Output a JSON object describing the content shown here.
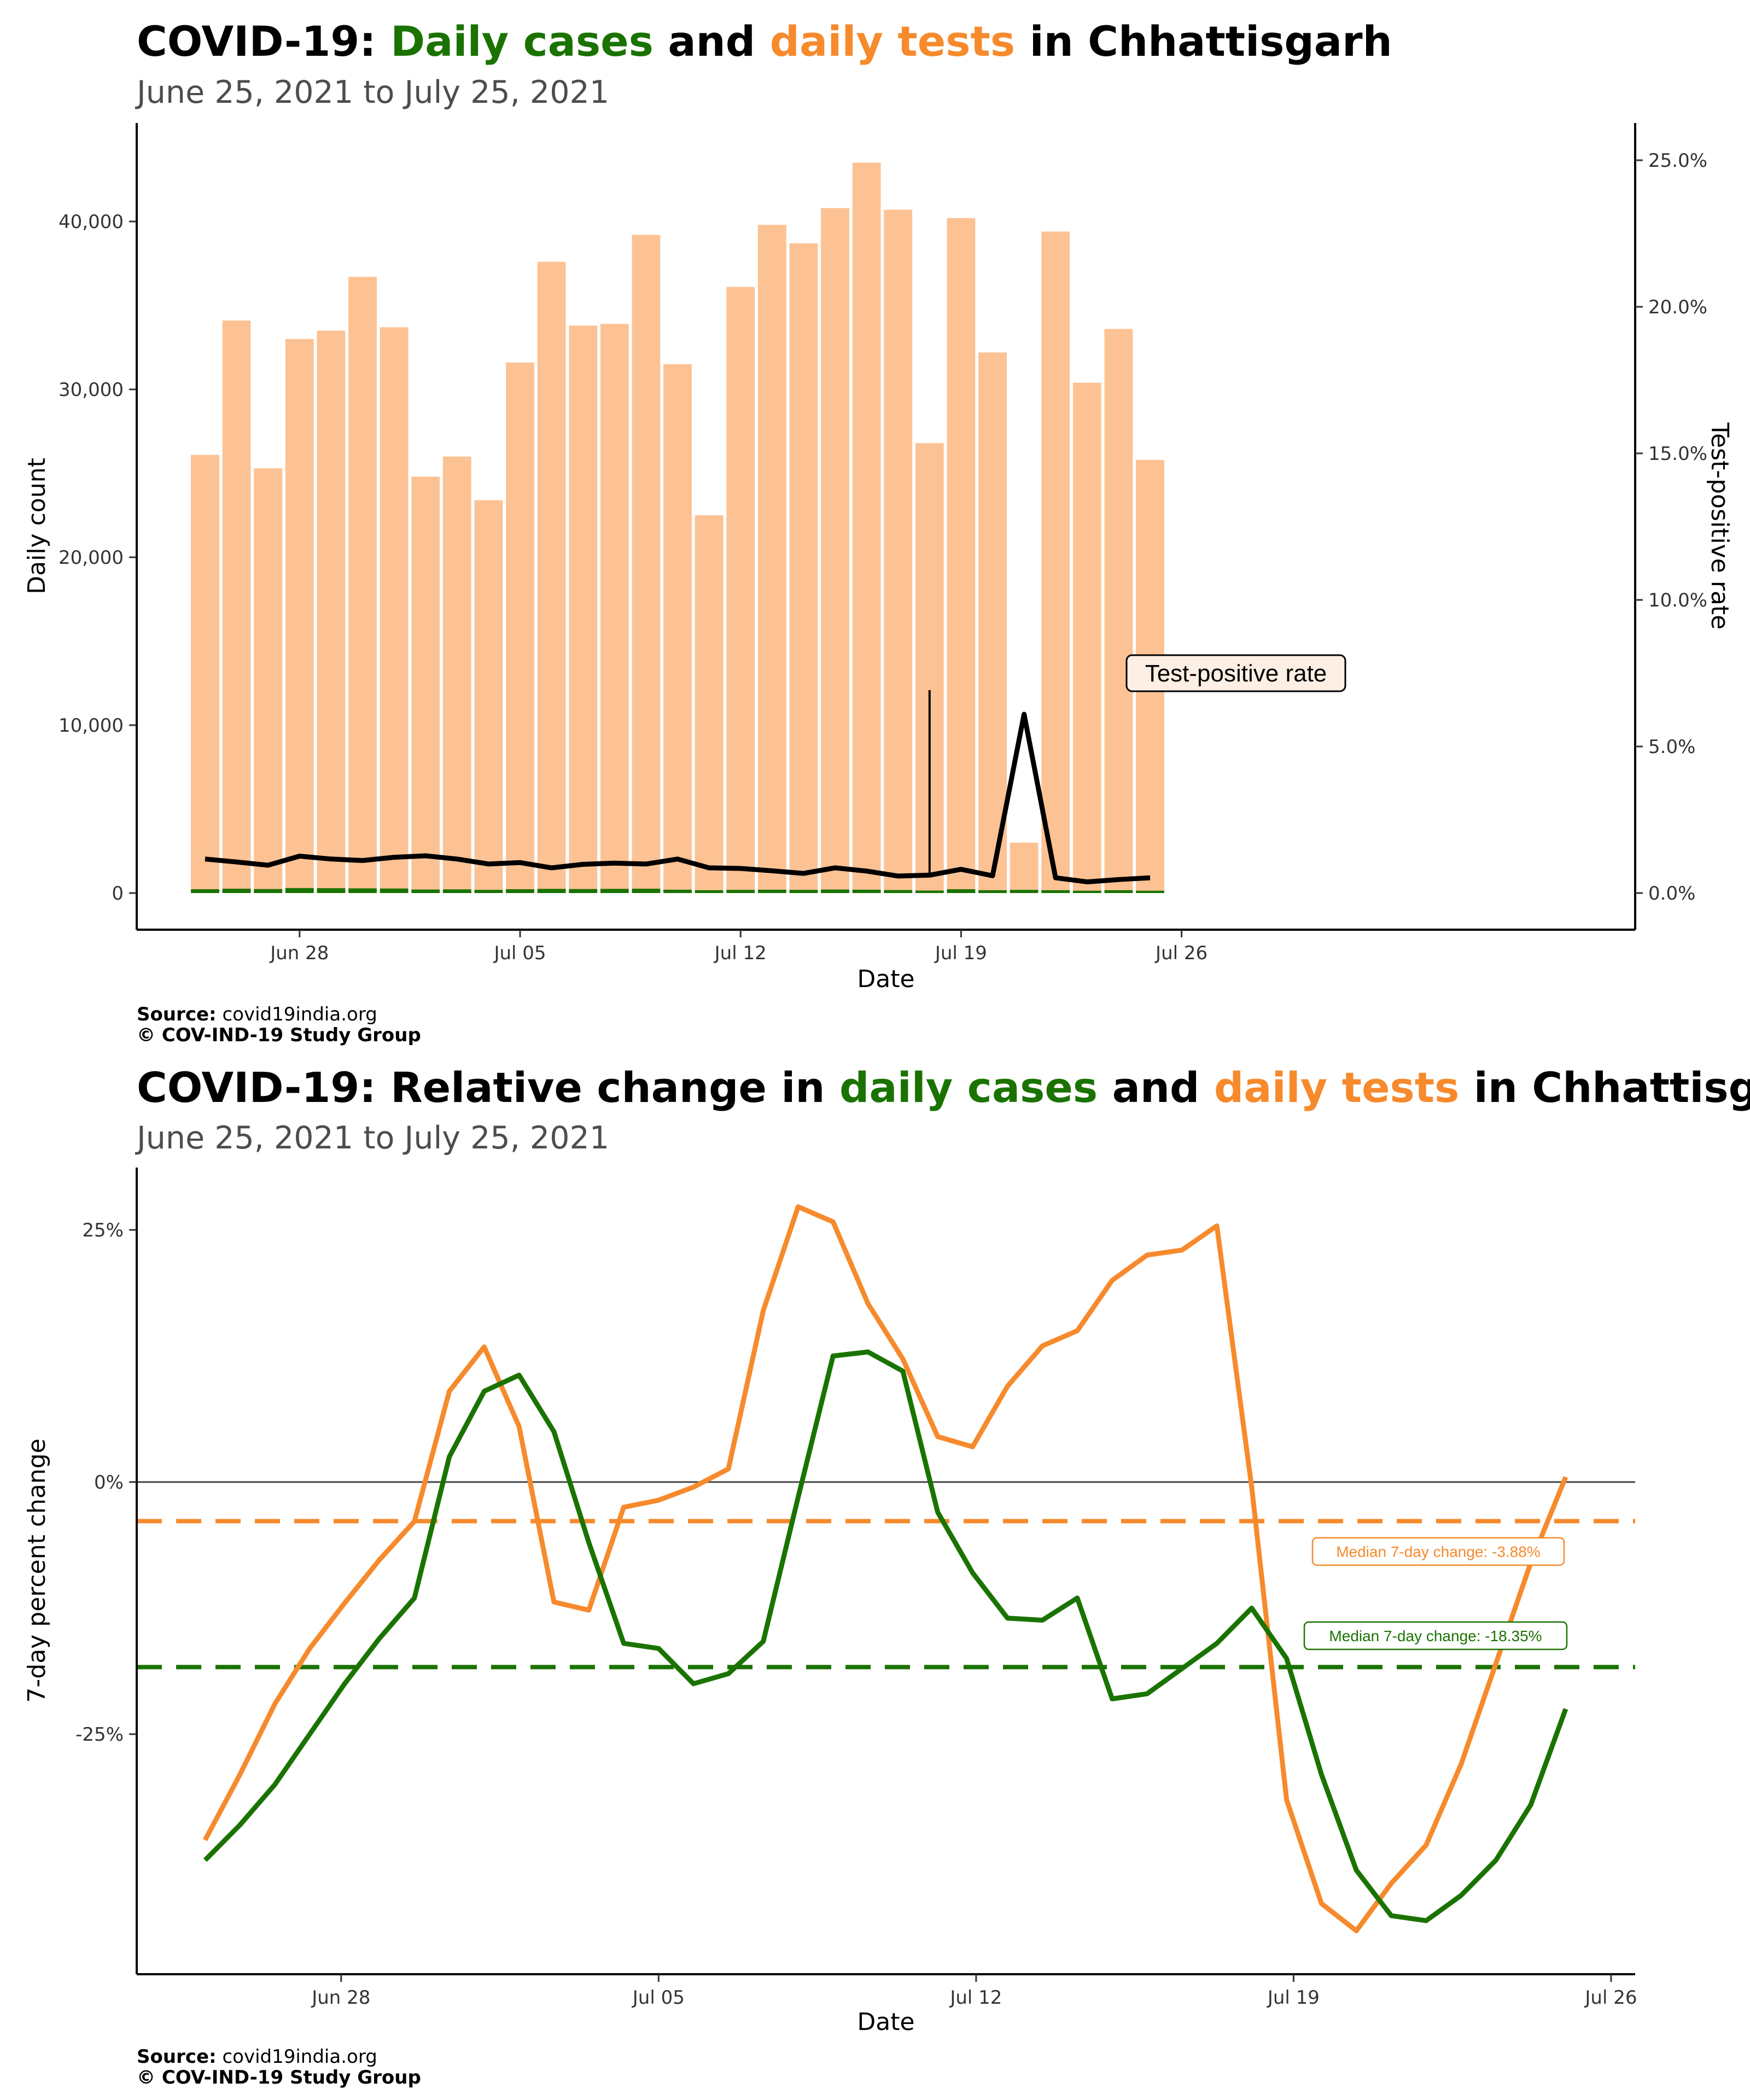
{
  "colors": {
    "cases": "#1a7300",
    "tests": "#f68a2c",
    "tests_bar": "#fdc293",
    "tpr": "#000000"
  },
  "chart1": {
    "title_prefix": "COVID-19: ",
    "title_cases": "Daily cases",
    "title_and": " and ",
    "title_tests": "daily tests",
    "title_suffix": " in Chhattisgarh",
    "subtitle": "June 25, 2021 to July 25, 2021",
    "xlabel": "Date",
    "ylabel": "Daily count",
    "y2label": "Test-positive rate",
    "annotation": "Test-positive rate",
    "source_label": "Source:",
    "source_value": " covid19india.org",
    "copyright": "© COV-IND-19 Study Group"
  },
  "chart2": {
    "title_prefix": "COVID-19: Relative change in ",
    "title_cases": "daily cases",
    "title_and": " and ",
    "title_tests": "daily tests",
    "title_suffix": " in Chhattisgarh",
    "subtitle": "June 25, 2021 to July 25, 2021",
    "xlabel": "Date",
    "ylabel": "7-day percent change",
    "median_tests_label": "Median 7-day change: -3.88%",
    "median_cases_label": "Median 7-day change: -18.35%",
    "source_label": "Source:",
    "source_value": " covid19india.org",
    "copyright": "© COV-IND-19 Study Group"
  },
  "chart_data": [
    {
      "type": "bar",
      "x_start": "2021-06-25",
      "x_end": "2021-07-25",
      "x_ticks": [
        "Jun 28",
        "Jul 05",
        "Jul 12",
        "Jul 19",
        "Jul 26"
      ],
      "y_ticks": [
        "0",
        "10,000",
        "20,000",
        "30,000",
        "40,000"
      ],
      "y2_ticks": [
        "0.0%",
        "5.0%",
        "10.0%",
        "15.0%",
        "20.0%",
        "25.0%"
      ],
      "ylim": [
        0,
        45000
      ],
      "y2lim": [
        0,
        26
      ],
      "series": [
        {
          "values": [
            26100,
            34100,
            25300,
            33000,
            33500,
            36700,
            33700,
            24800,
            26000,
            23400,
            31600,
            37600,
            33800,
            33900,
            39200,
            31500,
            22500,
            36100,
            39800,
            38700,
            40800,
            43500,
            40700,
            26800,
            40200,
            32200,
            3000,
            39400,
            30400,
            33600,
            25800
          ]
        },
        {
          "values": [
            230,
            260,
            240,
            300,
            290,
            280,
            270,
            210,
            220,
            190,
            230,
            250,
            240,
            250,
            260,
            200,
            170,
            190,
            200,
            190,
            210,
            200,
            180,
            150,
            230,
            170,
            190,
            170,
            140,
            170,
            140
          ]
        },
        {
          "values": [
            1.16,
            1.06,
            0.95,
            1.26,
            1.16,
            1.11,
            1.22,
            1.27,
            1.16,
            0.99,
            1.04,
            0.86,
            0.98,
            1.02,
            0.99,
            1.16,
            0.86,
            0.84,
            0.76,
            0.67,
            0.86,
            0.75,
            0.58,
            0.61,
            0.81,
            0.59,
            6.1,
            0.52,
            0.38,
            0.46,
            0.52
          ]
        }
      ]
    },
    {
      "type": "line",
      "x_start": "2021-06-25",
      "x_end": "2021-07-25",
      "x_ticks": [
        "Jun 28",
        "Jul 05",
        "Jul 12",
        "Jul 19",
        "Jul 26"
      ],
      "y_ticks": [
        "25%",
        "0%",
        "-25%"
      ],
      "ylim": [
        -48,
        31
      ],
      "series": [
        {
          "values": [
            -35.5,
            -29.0,
            -22.0,
            -16.5,
            -12.0,
            -7.7,
            -3.9,
            9.0,
            13.4,
            5.5,
            -11.9,
            -12.7,
            -2.5,
            -1.8,
            -0.5,
            1.3,
            17.0,
            27.3,
            25.8,
            17.7,
            12.2,
            4.5,
            3.5,
            9.5,
            13.5,
            15.0,
            20.0,
            22.5,
            23.0,
            25.4,
            -0.5,
            -31.5,
            -41.8,
            -44.5,
            -39.8,
            -36.0,
            -28.0,
            -18.0,
            -8.0,
            0.5
          ]
        },
        {
          "values": [
            -37.5,
            -34.0,
            -30.0,
            -25.0,
            -20.0,
            -15.5,
            -11.5,
            2.5,
            9.0,
            10.6,
            5.0,
            -6.0,
            -16.0,
            -16.5,
            -20.0,
            -19.0,
            -15.8,
            -1.5,
            12.5,
            12.9,
            11.0,
            -3.0,
            -9.0,
            -13.5,
            -13.7,
            -11.5,
            -21.5,
            -21.0,
            -18.5,
            -16.0,
            -12.5,
            -17.5,
            -29.0,
            -38.5,
            -43.0,
            -43.5,
            -41.0,
            -37.5,
            -32.0,
            -22.5
          ]
        }
      ],
      "hlines": [
        -3.88,
        -18.35
      ]
    }
  ]
}
